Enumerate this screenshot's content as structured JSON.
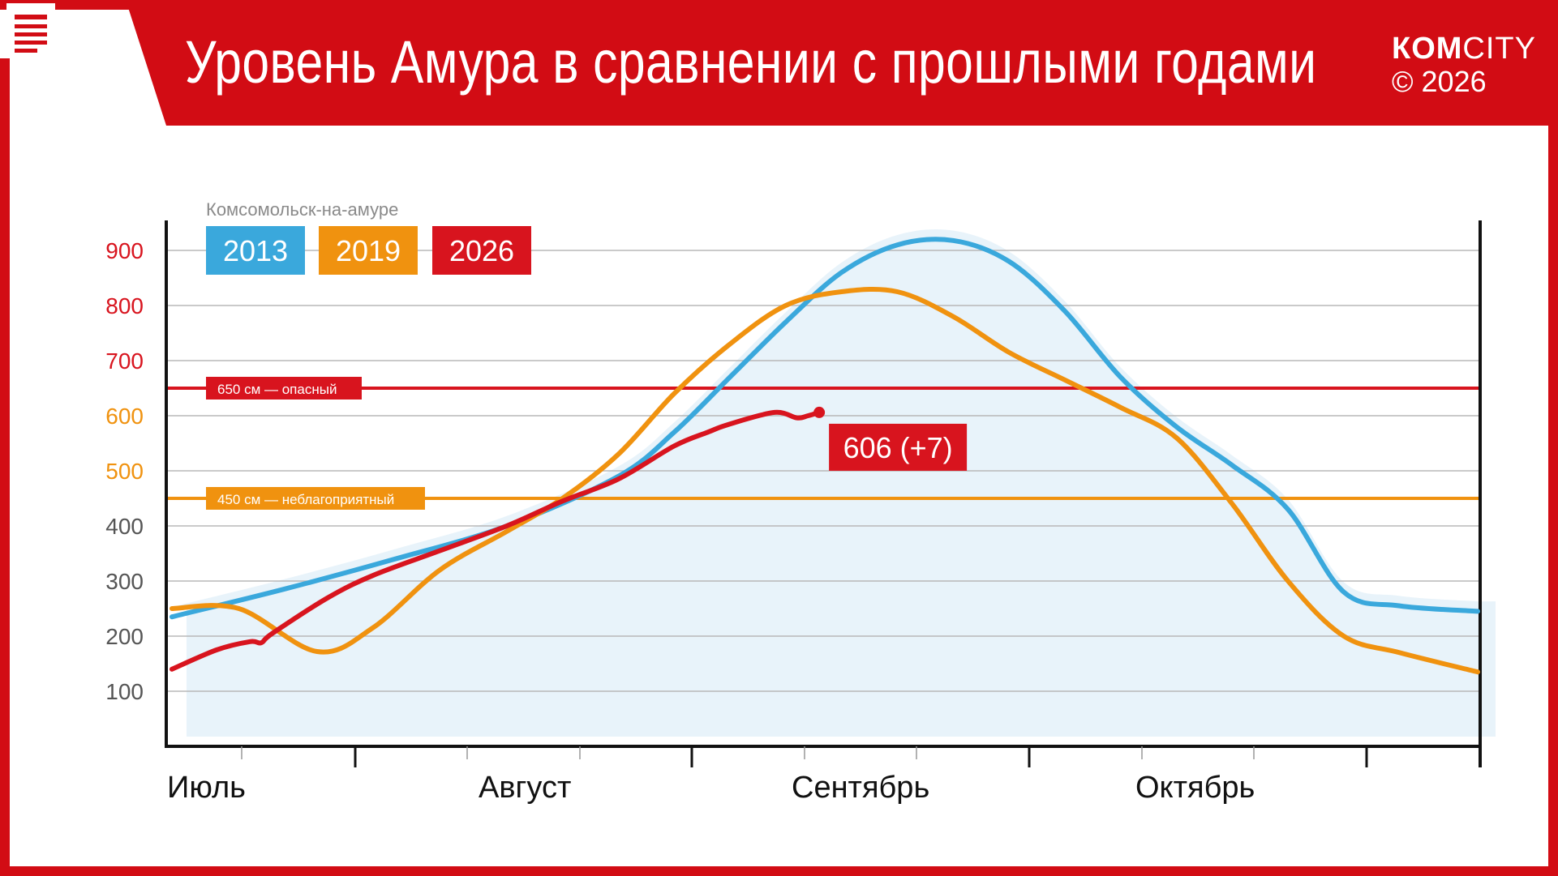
{
  "header": {
    "title": "Уровень Амура в сравнении с прошлыми годами",
    "brand_bold": "КОМ",
    "brand_light": "CITY",
    "copyright": "© 2026"
  },
  "colors": {
    "brand_red": "#d20c14",
    "series_2013": "#3aa8dc",
    "series_2019": "#f0920f",
    "series_2026": "#d8141e",
    "area": "#e8f3fa"
  },
  "chart_data": {
    "type": "line",
    "subtitle": "Комсомольск-на-амуре",
    "ylim": [
      0,
      950
    ],
    "y_ticks": [
      100,
      200,
      300,
      400,
      500,
      600,
      700,
      800,
      900
    ],
    "x_month_labels": [
      "Июль",
      "Август",
      "Сентябрь",
      "Октябрь"
    ],
    "x_range_days": [
      0,
      117
    ],
    "thresholds": [
      {
        "value": 650,
        "label": "650 см — опасный",
        "color": "#d8141e"
      },
      {
        "value": 450,
        "label": "450 см — неблагоприятный",
        "color": "#f0920f"
      }
    ],
    "series": [
      {
        "name": "2013",
        "color": "#3aa8dc",
        "x": [
          0,
          10,
          20,
          30,
          40,
          45,
          50,
          55,
          60,
          65,
          70,
          75,
          80,
          85,
          90,
          95,
          100,
          105,
          110,
          117
        ],
        "y": [
          235,
          285,
          340,
          400,
          490,
          570,
          670,
          770,
          860,
          910,
          918,
          880,
          790,
          670,
          580,
          510,
          430,
          280,
          255,
          245
        ]
      },
      {
        "name": "2019",
        "color": "#f0920f",
        "x": [
          0,
          6,
          13,
          18,
          24,
          30,
          35,
          40,
          45,
          50,
          55,
          60,
          65,
          70,
          75,
          80,
          85,
          90,
          95,
          100,
          105,
          110,
          117
        ],
        "y": [
          250,
          250,
          172,
          215,
          320,
          390,
          450,
          530,
          640,
          730,
          800,
          825,
          825,
          780,
          715,
          665,
          615,
          560,
          440,
          300,
          200,
          170,
          135
        ]
      },
      {
        "name": "2026",
        "color": "#d8141e",
        "x": [
          0,
          4,
          7,
          8,
          9,
          14,
          18,
          24,
          30,
          35,
          40,
          45,
          48,
          50,
          54,
          56,
          57,
          58
        ],
        "y": [
          140,
          175,
          190,
          188,
          205,
          270,
          310,
          355,
          400,
          445,
          485,
          545,
          570,
          585,
          606,
          596,
          600,
          606
        ]
      }
    ],
    "annotation": {
      "label": "606 (+7)",
      "x": 58,
      "y": 606
    }
  }
}
